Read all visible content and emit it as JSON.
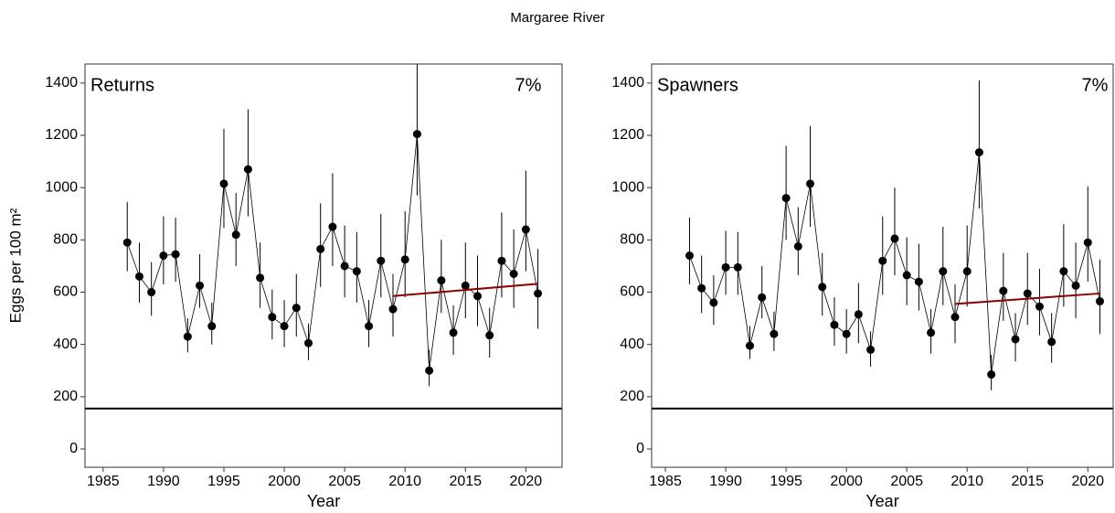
{
  "title": "Margaree River",
  "chart_data": [
    {
      "type": "line",
      "panel_label": "Returns",
      "annotation": "7%",
      "ylabel": "Eggs per 100 m²",
      "xlabel": "Year",
      "x": [
        1987,
        1988,
        1989,
        1990,
        1991,
        1992,
        1993,
        1994,
        1995,
        1996,
        1997,
        1998,
        1999,
        2000,
        2001,
        2002,
        2003,
        2004,
        2005,
        2006,
        2007,
        2008,
        2009,
        2010,
        2011,
        2012,
        2013,
        2014,
        2015,
        2016,
        2017,
        2018,
        2019,
        2020,
        2021
      ],
      "series": [
        {
          "color": "#000000",
          "values": [
            790,
            660,
            600,
            740,
            745,
            430,
            625,
            470,
            1015,
            820,
            1070,
            655,
            505,
            470,
            540,
            405,
            765,
            850,
            700,
            680,
            470,
            720,
            535,
            725,
            1205,
            300,
            645,
            445,
            625,
            585,
            435,
            720,
            670,
            840,
            595
          ],
          "lower": [
            680,
            560,
            510,
            630,
            640,
            370,
            540,
            400,
            845,
            700,
            890,
            540,
            420,
            390,
            430,
            340,
            620,
            700,
            580,
            560,
            390,
            580,
            430,
            580,
            970,
            240,
            520,
            360,
            500,
            470,
            350,
            580,
            540,
            680,
            460
          ],
          "upper": [
            945,
            790,
            715,
            890,
            885,
            500,
            745,
            560,
            1225,
            980,
            1300,
            790,
            610,
            570,
            670,
            480,
            940,
            1055,
            855,
            830,
            570,
            900,
            670,
            910,
            1500,
            380,
            800,
            550,
            790,
            740,
            540,
            905,
            840,
            1065,
            765
          ]
        }
      ],
      "trend": {
        "x": [
          2009,
          2021
        ],
        "values": [
          585,
          632
        ],
        "color": "#8b0000"
      },
      "hline": 155,
      "xlim": [
        1983.5,
        2023
      ],
      "ylim": [
        -70,
        1473
      ],
      "xticks": [
        1985,
        1990,
        1995,
        2000,
        2005,
        2010,
        2015,
        2020
      ],
      "yticks": [
        0,
        200,
        400,
        600,
        800,
        1000,
        1200,
        1400
      ]
    },
    {
      "type": "line",
      "panel_label": "Spawners",
      "annotation": "7%",
      "xlabel": "Year",
      "x": [
        1987,
        1988,
        1989,
        1990,
        1991,
        1992,
        1993,
        1994,
        1995,
        1996,
        1997,
        1998,
        1999,
        2000,
        2001,
        2002,
        2003,
        2004,
        2005,
        2006,
        2007,
        2008,
        2009,
        2010,
        2011,
        2012,
        2013,
        2014,
        2015,
        2016,
        2017,
        2018,
        2019,
        2020,
        2021
      ],
      "series": [
        {
          "color": "#000000",
          "values": [
            740,
            615,
            560,
            695,
            695,
            395,
            580,
            440,
            960,
            775,
            1015,
            620,
            475,
            440,
            515,
            380,
            720,
            805,
            665,
            640,
            445,
            680,
            505,
            680,
            1135,
            285,
            605,
            420,
            595,
            545,
            410,
            680,
            625,
            790,
            565
          ],
          "lower": [
            630,
            520,
            475,
            590,
            590,
            345,
            500,
            375,
            800,
            665,
            850,
            510,
            395,
            365,
            405,
            315,
            590,
            665,
            550,
            530,
            365,
            550,
            405,
            545,
            920,
            225,
            490,
            335,
            475,
            435,
            330,
            545,
            500,
            640,
            440
          ],
          "upper": [
            885,
            740,
            665,
            835,
            830,
            470,
            700,
            525,
            1160,
            925,
            1235,
            750,
            580,
            535,
            635,
            450,
            890,
            1000,
            810,
            785,
            535,
            850,
            630,
            855,
            1410,
            360,
            750,
            520,
            750,
            690,
            520,
            860,
            790,
            1005,
            725
          ]
        }
      ],
      "trend": {
        "x": [
          2009,
          2021
        ],
        "values": [
          555,
          595
        ],
        "color": "#8b0000"
      },
      "hline": 155,
      "xlim": [
        1983.86,
        2022.1
      ],
      "ylim": [
        -70,
        1473
      ],
      "xticks": [
        1985,
        1990,
        1995,
        2000,
        2005,
        2010,
        2015,
        2020
      ],
      "yticks": [
        0,
        200,
        400,
        600,
        800,
        1000,
        1200,
        1400
      ]
    }
  ]
}
